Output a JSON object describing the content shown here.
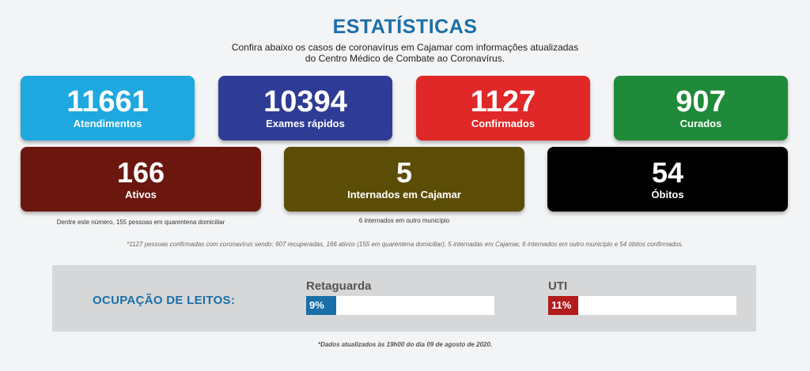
{
  "header": {
    "title": "ESTATÍSTICAS",
    "subtitle_line1": "Confira abaixo os casos de coronavírus em Cajamar com informações atualizadas",
    "subtitle_line2": "do Centro Médico de Combate ao Coronavírus."
  },
  "stats": {
    "atendimentos": {
      "value": "11661",
      "label": "Atendimentos",
      "color": "#1fa8e0"
    },
    "exames": {
      "value": "10394",
      "label": "Exames rápidos",
      "color": "#2f3c96"
    },
    "confirmados": {
      "value": "1127",
      "label": "Confirmados",
      "color": "#e02828"
    },
    "curados": {
      "value": "907",
      "label": "Curados",
      "color": "#1f8a3a"
    },
    "ativos": {
      "value": "166",
      "label": "Ativos",
      "color": "#6b1710",
      "note": "Dentre este número, 155 pessoas em quarentena domiciliar"
    },
    "internados": {
      "value": "5",
      "label": "Internados em Cajamar",
      "color": "#5c4d06",
      "note": "6 internados em outro município"
    },
    "obitos": {
      "value": "54",
      "label": "Óbitos",
      "color": "#000000"
    }
  },
  "footnote": "*1127 pessoas confirmadas com coronavírus sendo: 907 recuperadas, 166 ativos (155 em quarentena domiciliar), 5 internadas em Cajamar, 6 internados em outro município e 54 óbitos confirmados.",
  "leitos": {
    "title": "OCUPAÇÃO DE LEITOS:",
    "retaguarda": {
      "label": "Retaguarda",
      "percent_text": "9%",
      "percent": 9,
      "color": "#1b6fa8"
    },
    "uti": {
      "label": "UTI",
      "percent_text": "11%",
      "percent": 11,
      "color": "#b21c1c"
    }
  },
  "updated": "*Dados atualizados às 19h00 do dia 09 de agosto de 2020."
}
